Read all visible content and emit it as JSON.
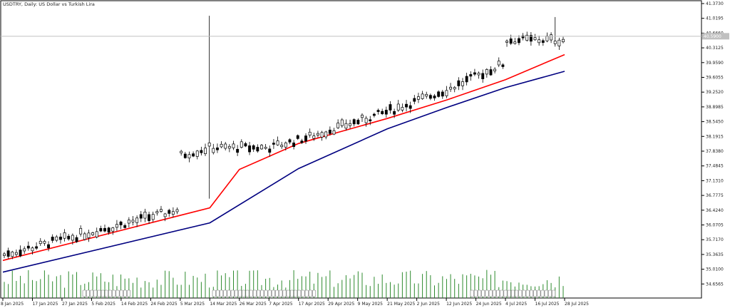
{
  "chart_data": {
    "type": "candlestick",
    "title": "USDTRY, Daily:  US Dollar vs Turkish Lira",
    "current_price": "40.5900",
    "y_axis": {
      "ticks": [
        "41.3730",
        "41.0195",
        "40.6660",
        "40.3125",
        "39.9590",
        "39.6055",
        "39.2520",
        "38.8985",
        "38.5450",
        "38.1915",
        "37.8380",
        "37.4845",
        "37.1310",
        "36.7775",
        "36.4240",
        "36.0705",
        "35.7170",
        "35.3635",
        "35.0100",
        "34.6565"
      ],
      "ylim": [
        34.6565,
        41.373
      ]
    },
    "x_axis": {
      "ticks": [
        "8 Jan 2025",
        "17 Jan 2025",
        "27 Jan 2025",
        "5 Feb 2025",
        "14 Feb 2025",
        "24 Feb 2025",
        "5 Mar 2025",
        "14 Mar 2025",
        "26 Mar 2025",
        "7 Apr 2025",
        "17 Apr 2025",
        "29 Apr 2025",
        "9 May 2025",
        "21 May 2025",
        "2 Jun 2025",
        "12 Jun 2025",
        "24 Jun 2025",
        "4 Jul 2025",
        "16 Jul 2025",
        "28 Jul 2025"
      ]
    },
    "series": [
      {
        "name": "",
        "color": "#ff0000",
        "role": "moving-average-fast",
        "points": [
          [
            "8 Jan 2025",
            35.22
          ],
          [
            "14 Mar 2025",
            36.48
          ],
          [
            "26 Mar 2025",
            37.4
          ],
          [
            "17 Apr 2025",
            38.02
          ],
          [
            "21 May 2025",
            38.62
          ],
          [
            "12 Jun 2025",
            39.06
          ],
          [
            "4 Jul 2025",
            39.55
          ],
          [
            "28 Jul 2025",
            40.15
          ]
        ]
      },
      {
        "name": "",
        "color": "#000080",
        "role": "moving-average-slow",
        "points": [
          [
            "8 Jan 2025",
            34.94
          ],
          [
            "14 Mar 2025",
            36.12
          ],
          [
            "17 Apr 2025",
            37.42
          ],
          [
            "21 May 2025",
            38.37
          ],
          [
            "12 Jun 2025",
            38.88
          ],
          [
            "4 Jul 2025",
            39.36
          ],
          [
            "28 Jul 2025",
            39.75
          ]
        ]
      }
    ],
    "candles_trend": [
      [
        "8 Jan 2025",
        35.35
      ],
      [
        "5 Mar 2025",
        36.45
      ],
      [
        "13 Mar 2025",
        36.65
      ],
      [
        "14 Mar 2025",
        37.92
      ],
      [
        "7 Apr 2025",
        37.92
      ],
      [
        "17 Apr 2025",
        38.1
      ],
      [
        "21 May 2025",
        38.78
      ],
      [
        "12 Jun 2025",
        39.3
      ],
      [
        "4 Jul 2025",
        39.95
      ],
      [
        "22 Jul 2025",
        40.5
      ]
    ],
    "spike_high": 41.08,
    "volume": {
      "color": "#2e8b2e"
    },
    "colors": {
      "bull": "#ffffff",
      "bear": "#000000",
      "grid": "#c8c8c8",
      "axis": "#000000"
    }
  }
}
